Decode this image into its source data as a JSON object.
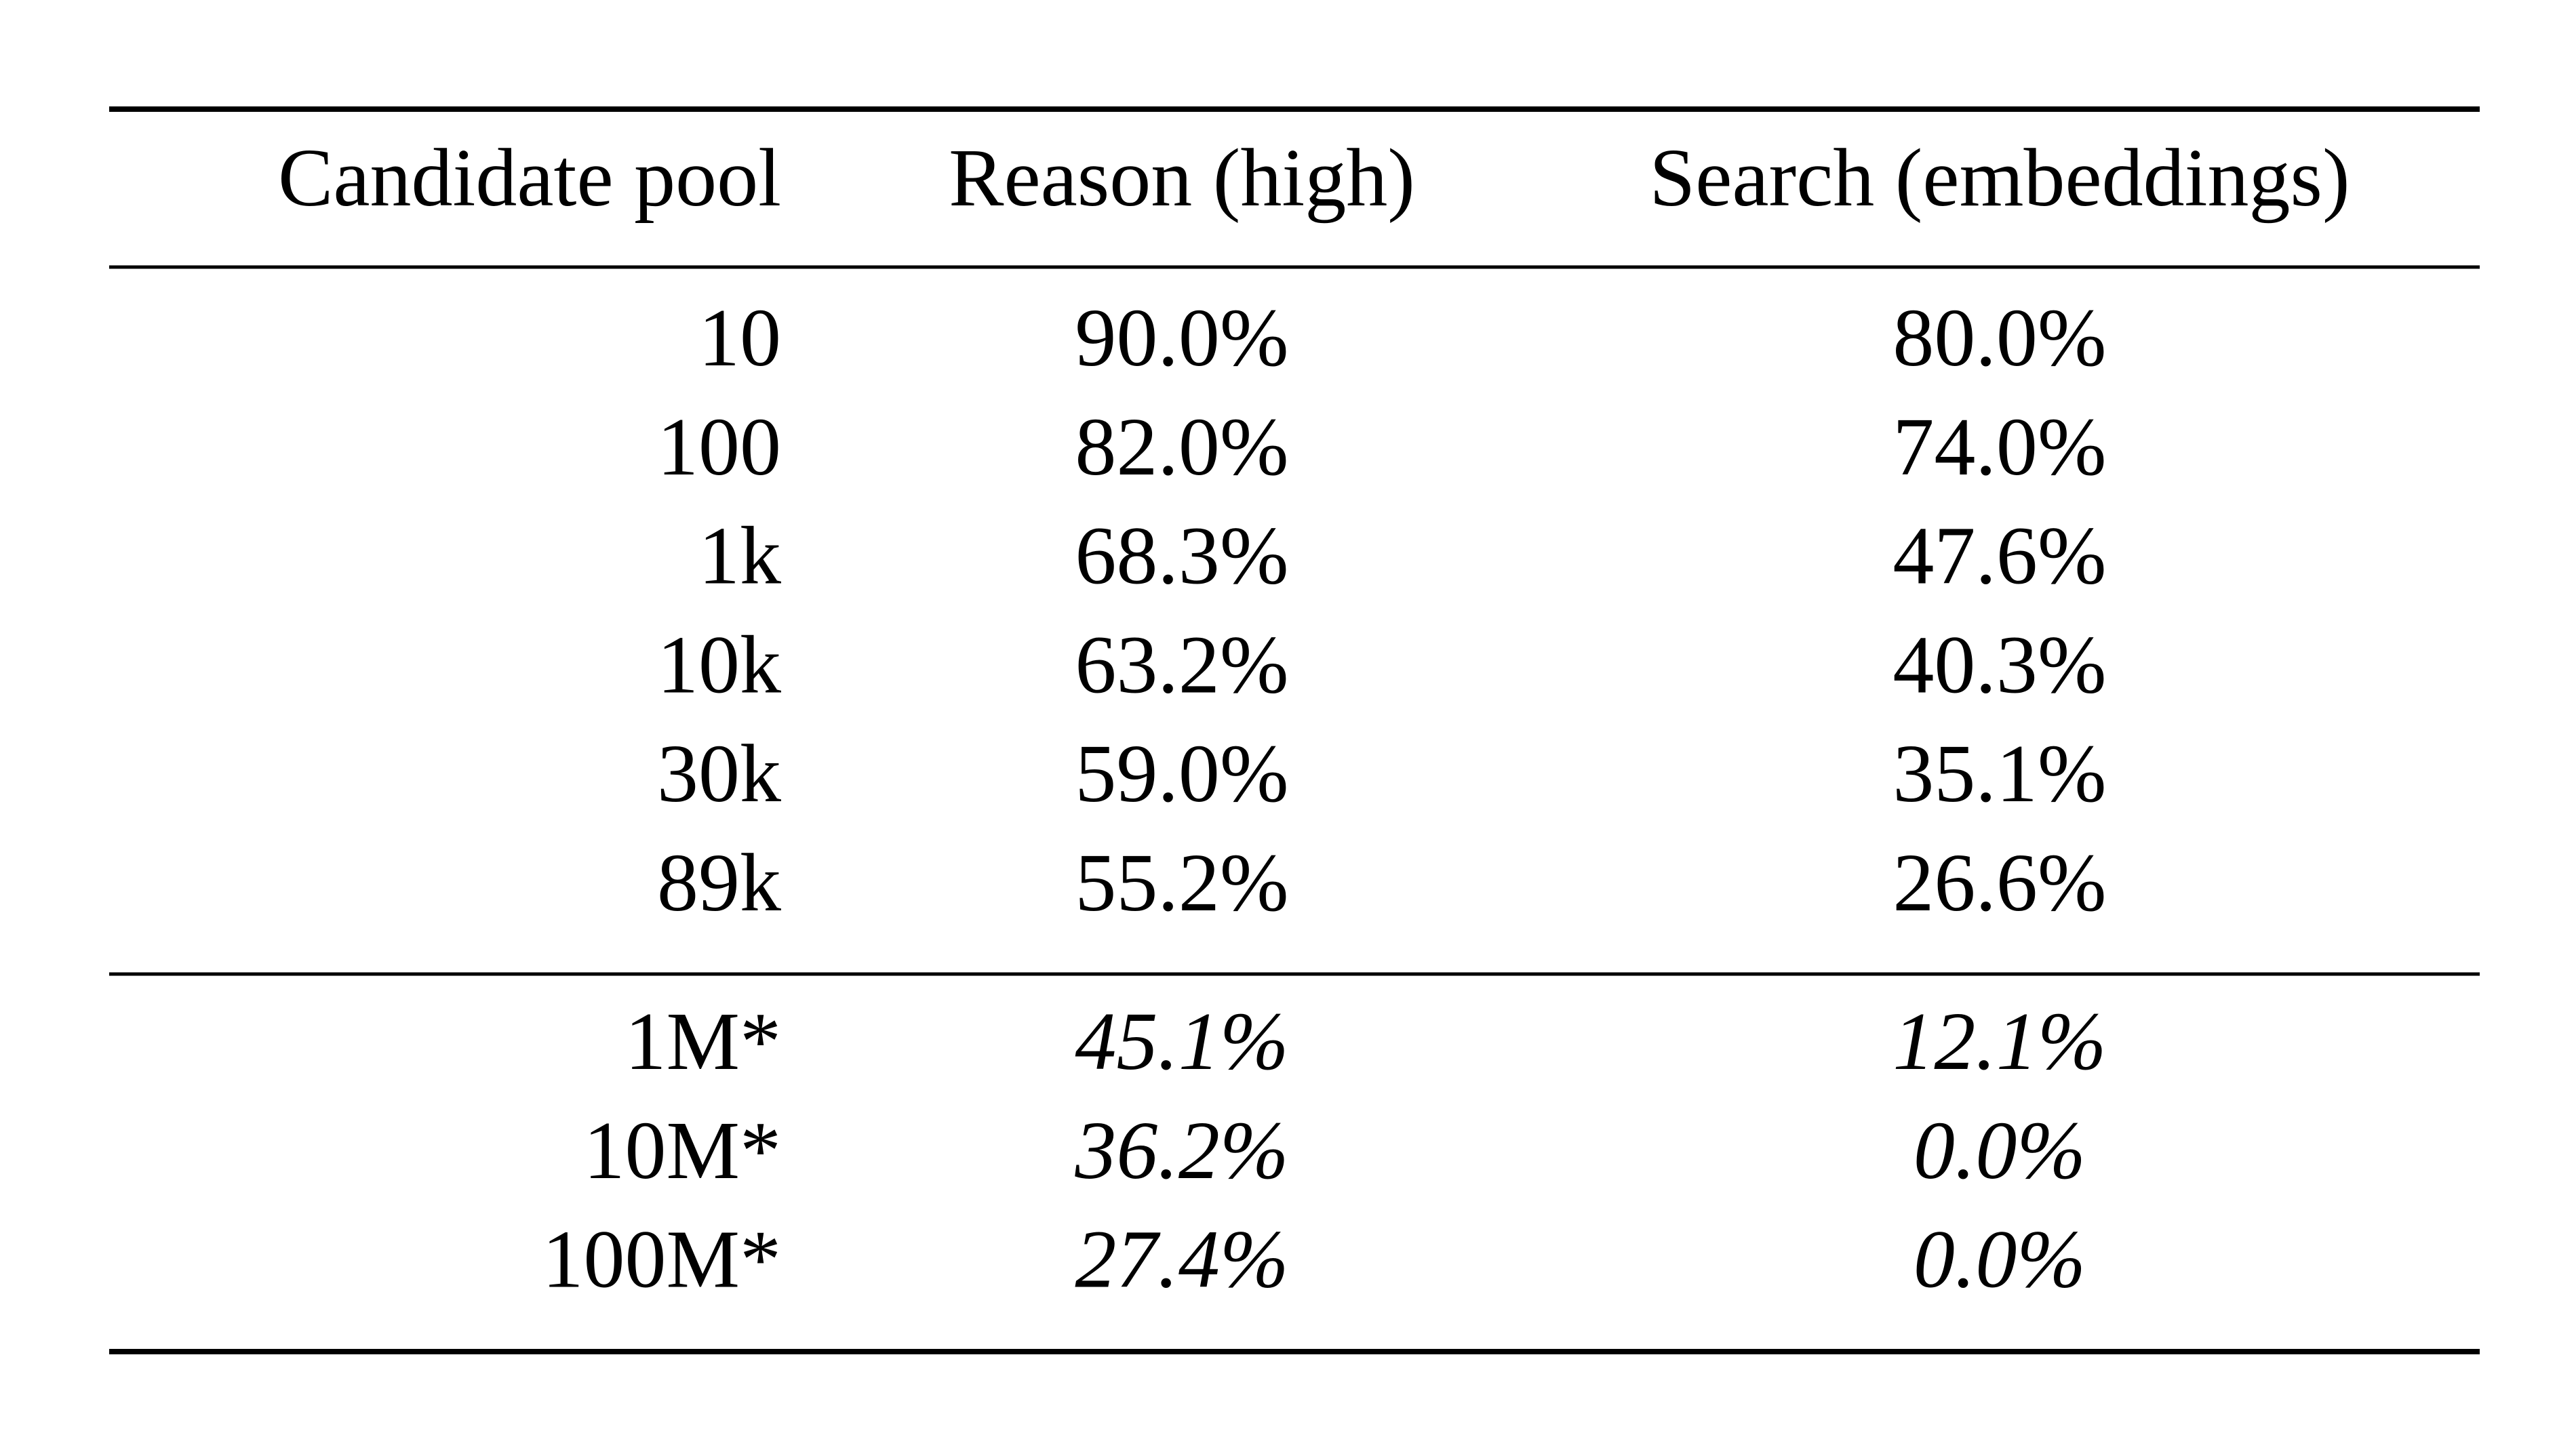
{
  "table": {
    "header": [
      "Candidate pool",
      "Reason (high)",
      "Search (embeddings)"
    ],
    "sections": [
      {
        "rows": [
          [
            "10",
            "90.0%",
            "80.0%"
          ],
          [
            "100",
            "82.0%",
            "74.0%"
          ],
          [
            "1k",
            "68.3%",
            "47.6%"
          ],
          [
            "10k",
            "63.2%",
            "40.3%"
          ],
          [
            "30k",
            "59.0%",
            "35.1%"
          ],
          [
            "89k",
            "55.2%",
            "26.6%"
          ]
        ]
      },
      {
        "rows": [
          [
            "1M*",
            "45.1%",
            "12.1%"
          ],
          [
            "10M*",
            "36.2%",
            "0.0%"
          ],
          [
            "100M*",
            "27.4%",
            "0.0%"
          ]
        ]
      }
    ]
  }
}
